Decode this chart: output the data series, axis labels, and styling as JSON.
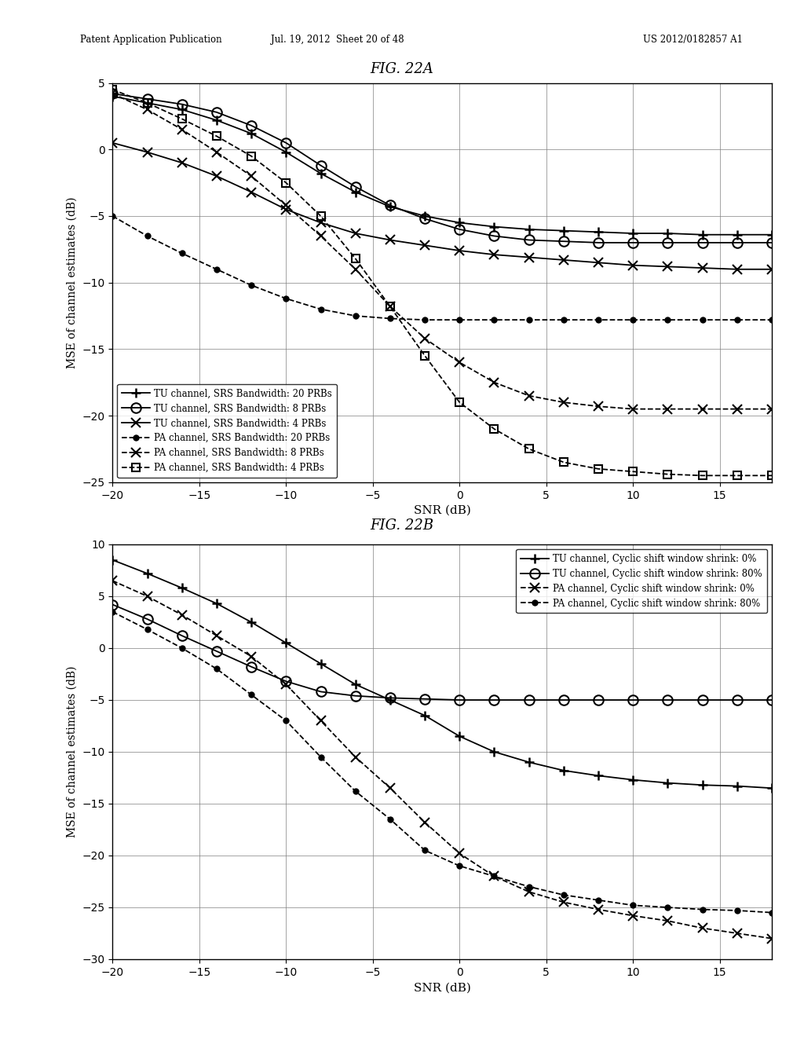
{
  "fig22a": {
    "title": "FIG. 22A",
    "xlabel": "SNR (dB)",
    "ylabel": "MSE of channel estimates (dB)",
    "xlim": [
      -20,
      18
    ],
    "ylim": [
      -25,
      5
    ],
    "xticks": [
      -20,
      -15,
      -10,
      -5,
      0,
      5,
      10,
      15
    ],
    "yticks": [
      -25,
      -20,
      -15,
      -10,
      -5,
      0,
      5
    ],
    "snr": [
      -20,
      -18,
      -16,
      -14,
      -12,
      -10,
      -8,
      -6,
      -4,
      -2,
      0,
      2,
      4,
      6,
      8,
      10,
      12,
      14,
      16,
      18
    ],
    "series": [
      {
        "label": "TU channel, SRS Bandwidth: 20 PRBs",
        "marker": "+",
        "dashed": false,
        "data": [
          4.0,
          3.5,
          3.0,
          2.2,
          1.2,
          -0.2,
          -1.8,
          -3.2,
          -4.3,
          -5.0,
          -5.5,
          -5.8,
          -6.0,
          -6.1,
          -6.2,
          -6.3,
          -6.3,
          -6.4,
          -6.4,
          -6.4
        ]
      },
      {
        "label": "TU channel, SRS Bandwidth: 8 PRBs",
        "marker": "o",
        "dashed": false,
        "data": [
          4.2,
          3.8,
          3.4,
          2.8,
          1.8,
          0.5,
          -1.2,
          -2.8,
          -4.2,
          -5.2,
          -6.0,
          -6.5,
          -6.8,
          -6.9,
          -7.0,
          -7.0,
          -7.0,
          -7.0,
          -7.0,
          -7.0
        ]
      },
      {
        "label": "TU channel, SRS Bandwidth: 4 PRBs",
        "marker": "x",
        "dashed": false,
        "data": [
          0.5,
          -0.2,
          -1.0,
          -2.0,
          -3.2,
          -4.5,
          -5.5,
          -6.3,
          -6.8,
          -7.2,
          -7.6,
          -7.9,
          -8.1,
          -8.3,
          -8.5,
          -8.7,
          -8.8,
          -8.9,
          -9.0,
          -9.0
        ]
      },
      {
        "label": "PA channel, SRS Bandwidth: 20 PRBs",
        "marker": "bullet",
        "dashed": true,
        "data": [
          -5.0,
          -6.5,
          -7.8,
          -9.0,
          -10.2,
          -11.2,
          -12.0,
          -12.5,
          -12.7,
          -12.8,
          -12.8,
          -12.8,
          -12.8,
          -12.8,
          -12.8,
          -12.8,
          -12.8,
          -12.8,
          -12.8,
          -12.8
        ]
      },
      {
        "label": "PA channel, SRS Bandwidth: 8 PRBs",
        "marker": "x",
        "dashed": true,
        "data": [
          4.2,
          3.0,
          1.5,
          -0.2,
          -2.0,
          -4.2,
          -6.5,
          -9.0,
          -11.8,
          -14.2,
          -16.0,
          -17.5,
          -18.5,
          -19.0,
          -19.3,
          -19.5,
          -19.5,
          -19.5,
          -19.5,
          -19.5
        ]
      },
      {
        "label": "PA channel, SRS Bandwidth: 4 PRBs",
        "marker": "sq",
        "dashed": true,
        "data": [
          4.5,
          3.5,
          2.3,
          1.0,
          -0.5,
          -2.5,
          -5.0,
          -8.2,
          -11.8,
          -15.5,
          -19.0,
          -21.0,
          -22.5,
          -23.5,
          -24.0,
          -24.2,
          -24.4,
          -24.5,
          -24.5,
          -24.5
        ]
      }
    ]
  },
  "fig22b": {
    "title": "FIG. 22B",
    "xlabel": "SNR (dB)",
    "ylabel": "MSE of channel estimates (dB)",
    "xlim": [
      -20,
      18
    ],
    "ylim": [
      -30,
      10
    ],
    "xticks": [
      -20,
      -15,
      -10,
      -5,
      0,
      5,
      10,
      15
    ],
    "yticks": [
      -30,
      -25,
      -20,
      -15,
      -10,
      -5,
      0,
      5,
      10
    ],
    "snr": [
      -20,
      -18,
      -16,
      -14,
      -12,
      -10,
      -8,
      -6,
      -4,
      -2,
      0,
      2,
      4,
      6,
      8,
      10,
      12,
      14,
      16,
      18
    ],
    "series": [
      {
        "label": "TU channel, Cyclic shift window shrink: 0%",
        "marker": "+",
        "dashed": false,
        "data": [
          8.5,
          7.2,
          5.8,
          4.3,
          2.5,
          0.5,
          -1.5,
          -3.5,
          -5.0,
          -6.5,
          -8.5,
          -10.0,
          -11.0,
          -11.8,
          -12.3,
          -12.7,
          -13.0,
          -13.2,
          -13.3,
          -13.5
        ]
      },
      {
        "label": "TU channel, Cyclic shift window shrink: 80%",
        "marker": "o",
        "dashed": false,
        "data": [
          4.2,
          2.8,
          1.2,
          -0.3,
          -1.8,
          -3.2,
          -4.2,
          -4.6,
          -4.8,
          -4.9,
          -5.0,
          -5.0,
          -5.0,
          -5.0,
          -5.0,
          -5.0,
          -5.0,
          -5.0,
          -5.0,
          -5.0
        ]
      },
      {
        "label": "PA channel, Cyclic shift window shrink: 0%",
        "marker": "x",
        "dashed": true,
        "data": [
          6.5,
          5.0,
          3.2,
          1.2,
          -0.8,
          -3.5,
          -7.0,
          -10.5,
          -13.5,
          -16.8,
          -19.8,
          -22.0,
          -23.5,
          -24.5,
          -25.2,
          -25.8,
          -26.3,
          -27.0,
          -27.5,
          -28.0
        ]
      },
      {
        "label": "PA channel, Cyclic shift window shrink: 80%",
        "marker": "bullet",
        "dashed": true,
        "data": [
          3.5,
          1.8,
          0.0,
          -2.0,
          -4.5,
          -7.0,
          -10.5,
          -13.8,
          -16.5,
          -19.5,
          -21.0,
          -22.0,
          -23.0,
          -23.8,
          -24.3,
          -24.8,
          -25.0,
          -25.2,
          -25.3,
          -25.5
        ]
      }
    ]
  },
  "header_line1": "Patent Application Publication",
  "header_line2": "Jul. 19, 2012  Sheet 20 of 48",
  "header_line3": "US 2012/0182857 A1",
  "background_color": "#ffffff",
  "text_color": "#000000"
}
